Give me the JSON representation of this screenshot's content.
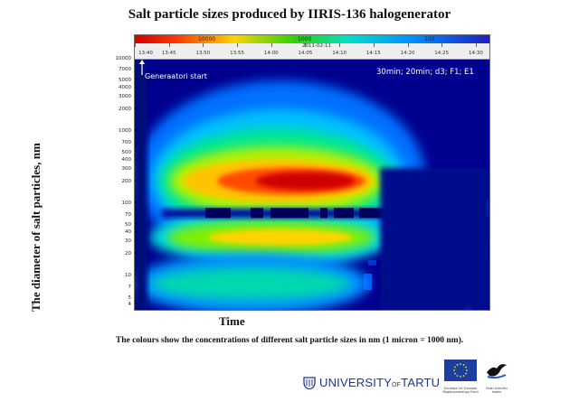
{
  "title": "Salt particle sizes produced by IIRIS-136 halogenerator",
  "colorbar": {
    "labels": [
      "10000",
      "1000",
      "100"
    ],
    "colors": [
      "#d40000",
      "#ffd400",
      "#2ad400",
      "#00e0c8",
      "#0090ff",
      "#2020c0"
    ]
  },
  "annotations": {
    "start": "Generaatori start",
    "params": "30min; 20min; d3; F1; E1"
  },
  "caption": "The colours show the concentrations of different salt particle sizes in nm (1 micron = 1000 nm).",
  "logos": {
    "ut_main": "UNIVERSITY",
    "ut_of": "OF",
    "ut_city": "TARTU",
    "eu_text": "Euroopa Liit Euroopa Regionaalarengu Fond",
    "ee_text": "Eesti tuleviku heaks"
  },
  "chart_data": {
    "type": "heatmap",
    "title": "Salt particle sizes produced by IIRIS-136 halogenerator",
    "xlabel": "Time",
    "ylabel": "The diameter of salt particles, nm",
    "date": "2011-02-11",
    "x_ticks": [
      "13:40",
      "13:45",
      "13:50",
      "13:55",
      "14:00",
      "14:05",
      "14:10",
      "14:15",
      "14:20",
      "14:25",
      "14:30"
    ],
    "y_scale": "log",
    "y_ticks": [
      4,
      5,
      7,
      10,
      20,
      30,
      40,
      50,
      70,
      100,
      200,
      300,
      400,
      500,
      700,
      1000,
      2000,
      3000,
      4000,
      5000,
      7000,
      10000
    ],
    "ylim": [
      3.5,
      10000
    ],
    "xlim": [
      "13:40",
      "14:32"
    ],
    "colorbar_labels": [
      "10000",
      "1000",
      "100"
    ],
    "bands": [
      {
        "size_nm_center": 250,
        "level": "highest",
        "start": "13:45",
        "end": "14:15"
      },
      {
        "size_nm_center": 75,
        "level": "gap",
        "start": "13:50",
        "end": "14:18"
      },
      {
        "size_nm_center": 35,
        "level": "medium-high",
        "start": "13:45",
        "end": "14:15"
      },
      {
        "size_nm_center": 8,
        "level": "medium",
        "start": "13:42",
        "end": "14:12"
      }
    ]
  }
}
